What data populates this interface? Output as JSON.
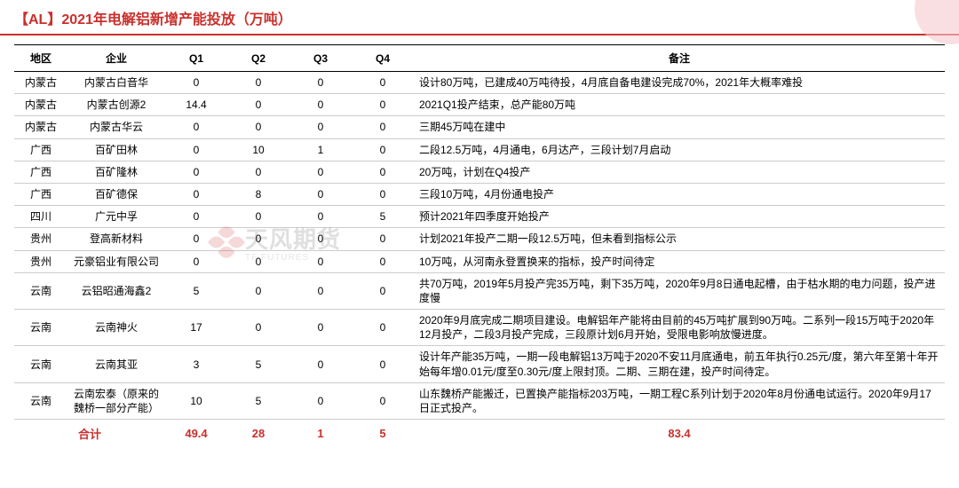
{
  "header": {
    "title": "【AL】2021年电解铝新增产能投放（万吨）"
  },
  "watermark": {
    "cn": "天风期货",
    "en": "TF FUTURES"
  },
  "table": {
    "columns": [
      "地区",
      "企业",
      "Q1",
      "Q2",
      "Q3",
      "Q4",
      "备注"
    ],
    "rows": [
      {
        "region": "内蒙古",
        "company": "内蒙古白音华",
        "q1": "0",
        "q2": "0",
        "q3": "0",
        "q4": "0",
        "remarks": "设计80万吨，已建成40万吨待投，4月底自备电建设完成70%，2021年大概率难投"
      },
      {
        "region": "内蒙古",
        "company": "内蒙古创源2",
        "q1": "14.4",
        "q2": "0",
        "q3": "0",
        "q4": "0",
        "remarks": "2021Q1投产结束，总产能80万吨"
      },
      {
        "region": "内蒙古",
        "company": "内蒙古华云",
        "q1": "0",
        "q2": "0",
        "q3": "0",
        "q4": "0",
        "remarks": "三期45万吨在建中"
      },
      {
        "region": "广西",
        "company": "百矿田林",
        "q1": "0",
        "q2": "10",
        "q3": "1",
        "q4": "0",
        "remarks": "二段12.5万吨，4月通电，6月达产，三段计划7月启动"
      },
      {
        "region": "广西",
        "company": "百矿隆林",
        "q1": "0",
        "q2": "0",
        "q3": "0",
        "q4": "0",
        "remarks": "20万吨，计划在Q4投产"
      },
      {
        "region": "广西",
        "company": "百矿德保",
        "q1": "0",
        "q2": "8",
        "q3": "0",
        "q4": "0",
        "remarks": "三段10万吨，4月份通电投产"
      },
      {
        "region": "四川",
        "company": "广元中孚",
        "q1": "0",
        "q2": "0",
        "q3": "0",
        "q4": "5",
        "remarks": "预计2021年四季度开始投产"
      },
      {
        "region": "贵州",
        "company": "登高新材料",
        "q1": "0",
        "q2": "0",
        "q3": "0",
        "q4": "0",
        "remarks": "计划2021年投产二期一段12.5万吨，但未看到指标公示"
      },
      {
        "region": "贵州",
        "company": "元豪铝业有限公司",
        "q1": "0",
        "q2": "0",
        "q3": "0",
        "q4": "0",
        "remarks": "10万吨，从河南永登置换来的指标，投产时间待定"
      },
      {
        "region": "云南",
        "company": "云铝昭通海鑫2",
        "q1": "5",
        "q2": "0",
        "q3": "0",
        "q4": "0",
        "remarks": "共70万吨，2019年5月投产完35万吨，剩下35万吨，2020年9月8日通电起槽，由于枯水期的电力问题，投产进度慢"
      },
      {
        "region": "云南",
        "company": "云南神火",
        "q1": "17",
        "q2": "0",
        "q3": "0",
        "q4": "0",
        "remarks": "2020年9月底完成二期项目建设。电解铝年产能将由目前的45万吨扩展到90万吨。二系列一段15万吨于2020年12月投产，二段3月投产完成，三段原计划6月开始，受限电影响放慢进度。"
      },
      {
        "region": "云南",
        "company": "云南其亚",
        "q1": "3",
        "q2": "5",
        "q3": "0",
        "q4": "0",
        "remarks": "设计年产能35万吨，一期一段电解铝13万吨于2020不安11月底通电，前五年执行0.25元/度，第六年至第十年开始每年增0.01元/度至0.30元/度上限封顶。二期、三期在建，投产时间待定。"
      },
      {
        "region": "云南",
        "company": "云南宏泰（原来的魏桥一部分产能）",
        "q1": "10",
        "q2": "5",
        "q3": "0",
        "q4": "0",
        "remarks": "山东魏桥产能搬迁，已置换产能指标203万吨，一期工程C系列计划于2020年8月份通电试运行。2020年9月17日正式投产。"
      }
    ],
    "footer": {
      "label": "合计",
      "q1": "49.4",
      "q2": "28",
      "q3": "1",
      "q4": "5",
      "total": "83.4"
    }
  }
}
